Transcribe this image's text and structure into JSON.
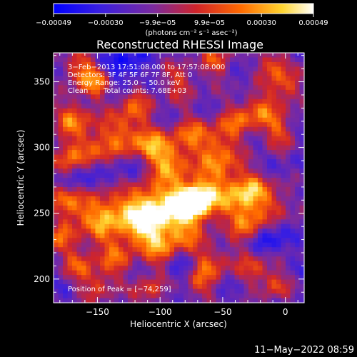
{
  "chart_data": {
    "type": "heatmap",
    "title": "Reconstructed RHESSI Image",
    "xlabel": "Heliocentric X (arcsec)",
    "ylabel": "Heliocentric Y (arcsec)",
    "xlim": [
      -185,
      15
    ],
    "ylim": [
      182,
      372
    ],
    "xticks": [
      -150,
      -100,
      -50,
      0
    ],
    "yticks": [
      200,
      250,
      300,
      350
    ],
    "xtick_labels": [
      "−150",
      "−100",
      "−50",
      "0"
    ],
    "ytick_labels": [
      "200",
      "250",
      "300",
      "350"
    ],
    "colorbar": {
      "range": [
        -0.00049,
        0.00049
      ],
      "tick_labels": [
        "−0.00049",
        "−0.00030",
        "−9.9e−05",
        "9.9e−05",
        "0.00030",
        "0.00049"
      ],
      "unit_label": "(photons cm⁻² s⁻¹ asec⁻²)",
      "colors": [
        "#0000ff",
        "#5a2bd0",
        "#9a2a80",
        "#e8241c",
        "#ff8a00",
        "#ffd530",
        "#ffffff"
      ]
    },
    "annotations": [
      "3−Feb−2013 17:51:08.000 to 17:57:08.000",
      "Detectors: 3F 4F 5F 6F 7F 8F, Att 0",
      "Energy Range: 25.0 − 50.0 keV",
      "Clean",
      "Total counts: 7.68E+03",
      "Position of Peak = [−74,259]"
    ],
    "peak": [
      -74,
      259
    ],
    "footer_date": "11−May−2022 08:59"
  }
}
